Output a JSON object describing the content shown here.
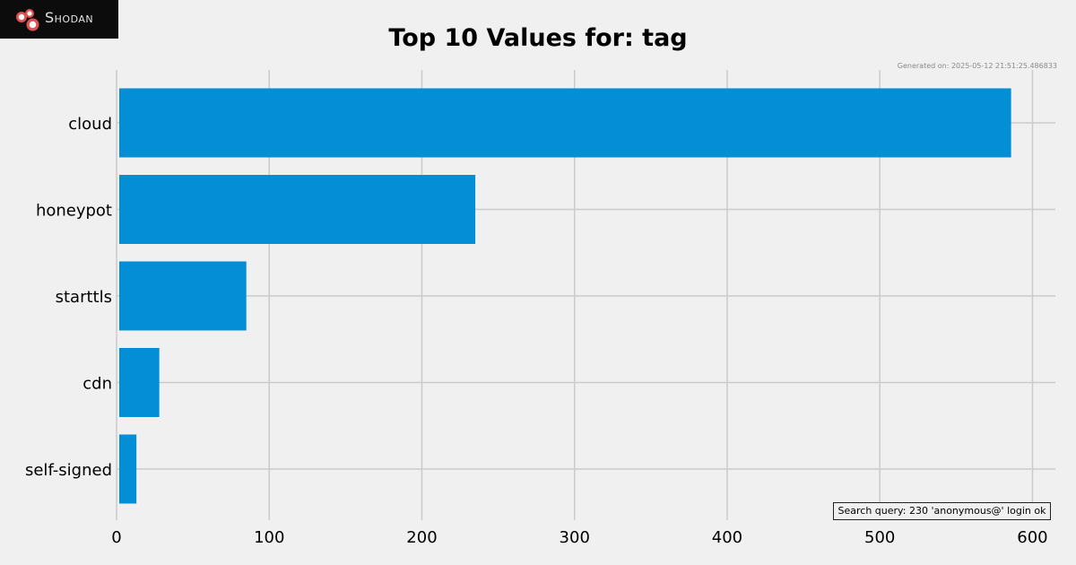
{
  "header": {
    "brand": "Shodan",
    "generated_text": "Generated on: 2025-05-12 21:51:25.486833"
  },
  "footer": {
    "query_text": "Search query: 230 'anonymous@' login ok"
  },
  "colors": {
    "background": "#f0f0f0",
    "bar": "#038ed6",
    "grid": "#cbcbcb",
    "logo_bg": "#0c0c0c",
    "logo_accent": "#e05050"
  },
  "chart_data": {
    "type": "bar",
    "orientation": "horizontal",
    "title": "Top 10 Values for: tag",
    "xlabel": "",
    "ylabel": "",
    "categories": [
      "cloud",
      "honeypot",
      "starttls",
      "cdn",
      "self-signed"
    ],
    "values": [
      586,
      235,
      85,
      28,
      13
    ],
    "xlim": [
      0,
      615
    ],
    "xticks": [
      0,
      100,
      200,
      300,
      400,
      500,
      600
    ],
    "grid": true,
    "legend": "none"
  }
}
